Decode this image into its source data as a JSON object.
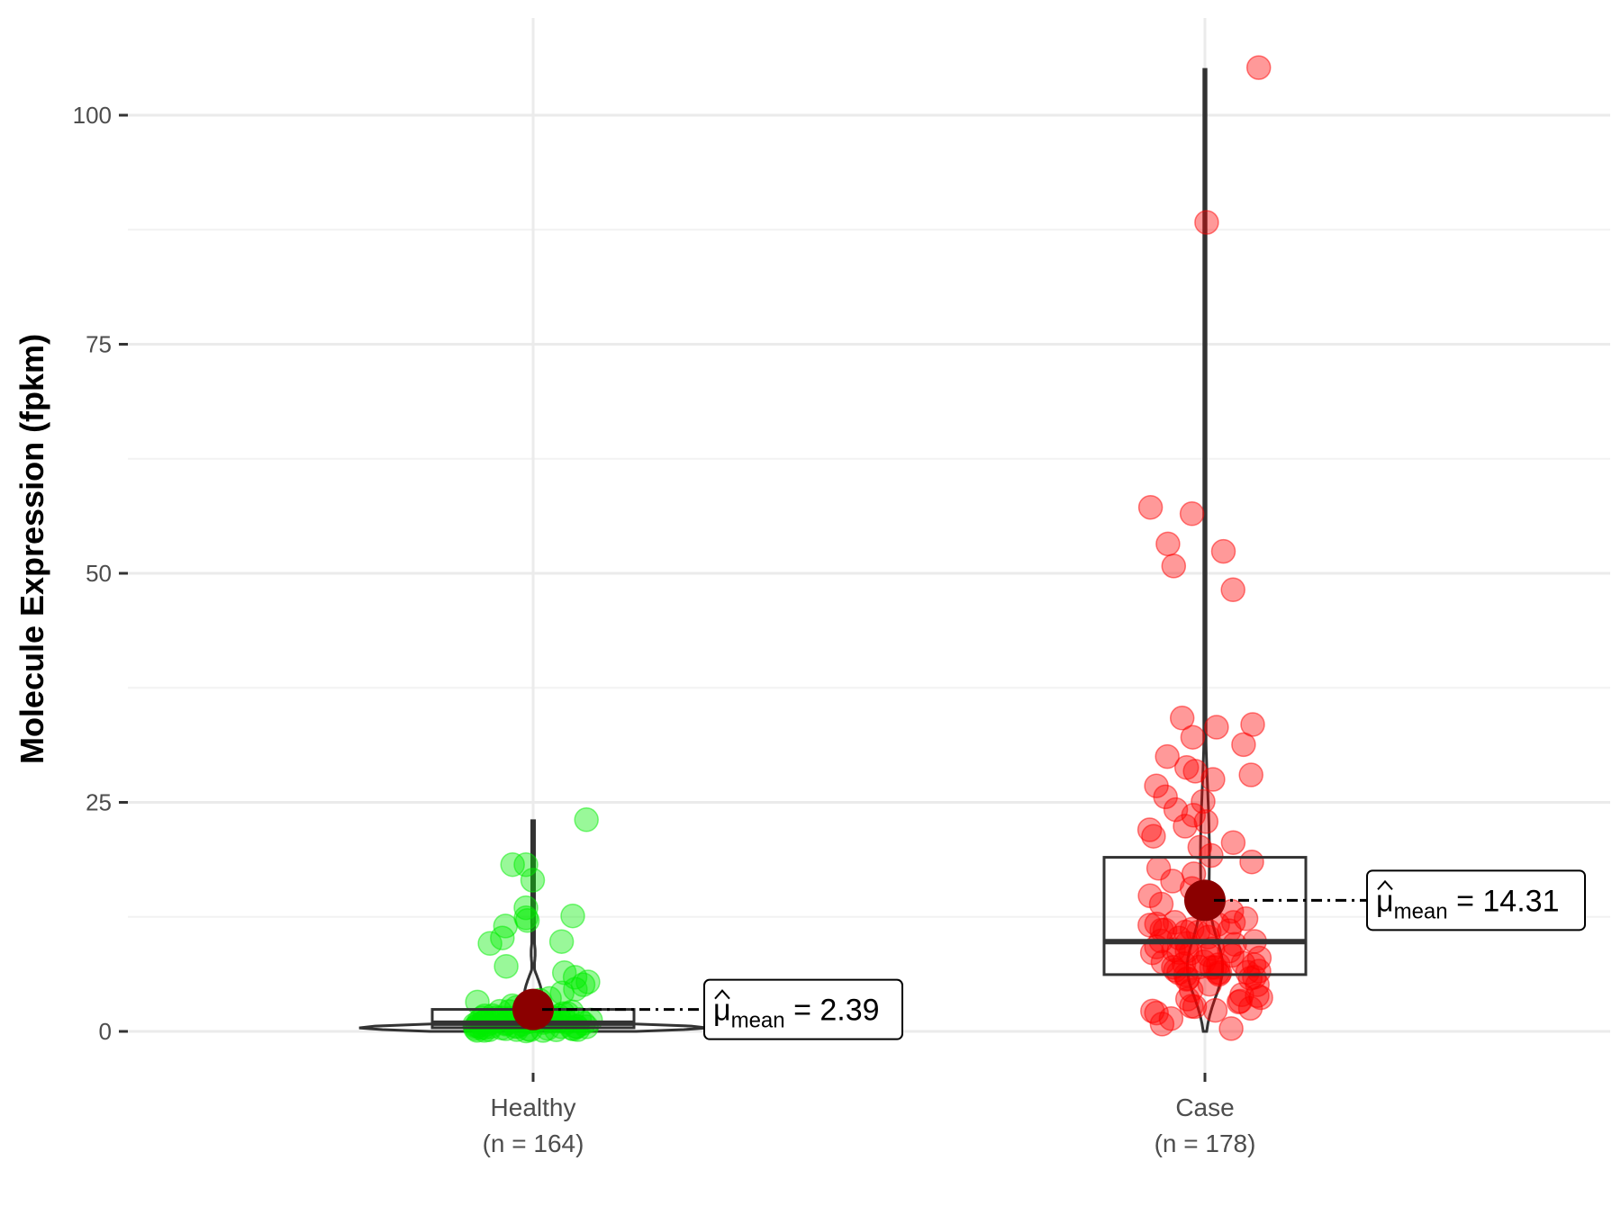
{
  "chart_data": {
    "type": "scatter",
    "subtype": "violin-box-jitter",
    "ylabel": "Molecule Expression (fpkm)",
    "xlabel": "",
    "ylim": [
      -5,
      110
    ],
    "yticks": [
      0,
      25,
      50,
      75,
      100
    ],
    "grid": true,
    "groups": [
      {
        "name": "Healthy",
        "n_label": "(n = 164)",
        "color": "#00ee00",
        "mean": 2.39,
        "mean_label": "2.39",
        "box": {
          "q1": 0.4,
          "median": 0.9,
          "q3": 2.4,
          "whisker_low": 0,
          "whisker_high": 23
        },
        "violin_max": 23,
        "outliers": [
          23.1,
          18.2,
          18.2,
          16.5,
          13.5,
          12.6,
          12.1,
          12.4,
          11.5,
          10.2,
          9.8,
          9.6,
          7.1,
          6.4,
          5.9,
          5.4,
          5.1,
          4.6,
          4.2,
          3.6,
          3.4,
          3.2,
          2.8,
          2.6,
          2.2,
          1.8,
          1.4,
          1.1,
          0.8,
          0.5,
          0.3,
          0.2,
          0.1,
          0.05
        ]
      },
      {
        "name": "Case",
        "n_label": "(n = 178)",
        "color": "#ff0000",
        "mean": 14.31,
        "mean_label": "14.31",
        "box": {
          "q1": 6.2,
          "median": 9.8,
          "q3": 19.0,
          "whisker_low": 0,
          "whisker_high": 105
        },
        "violin_max": 105,
        "outliers": [
          105.2,
          88.3,
          57.2,
          56.5,
          53.2,
          52.4,
          50.8,
          48.2,
          34.2,
          33.5,
          33.2,
          32.1,
          31.3,
          30.0,
          28.8,
          28.4,
          28.0,
          27.5,
          26.8,
          25.6,
          25.1,
          24.2,
          23.6,
          22.9,
          22.4,
          22.0,
          21.3,
          20.6,
          20.1,
          19.2,
          18.5,
          17.8,
          17.2,
          16.4,
          15.6,
          14.8,
          13.9,
          13.1,
          12.3,
          11.6,
          10.9,
          10.2,
          9.6,
          8.9,
          8.3,
          7.6,
          7.0,
          6.4,
          5.8,
          5.1,
          4.5,
          3.9,
          3.3,
          2.7,
          2.0,
          1.4,
          0.8,
          0.3
        ]
      }
    ]
  }
}
